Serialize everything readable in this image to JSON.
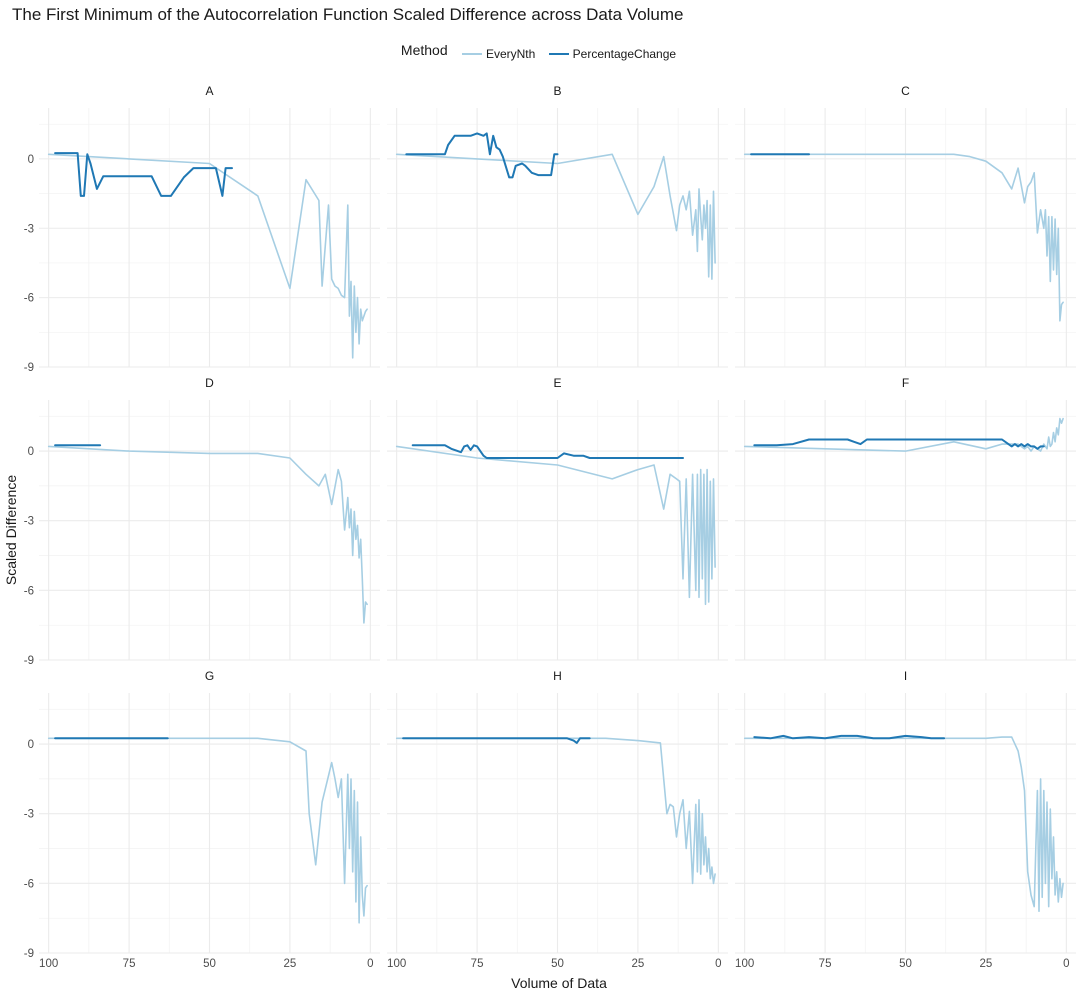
{
  "chart_data": {
    "type": "line",
    "title": "The First Minimum of the Autocorrelation Function Scaled Difference across Data Volume",
    "xlabel": "Volume of Data",
    "ylabel": "Scaled Difference",
    "xlim": [
      103,
      -3
    ],
    "ylim": [
      -9,
      2.2
    ],
    "x_reversed": true,
    "x_ticks": [
      100,
      75,
      50,
      25,
      0
    ],
    "y_ticks": [
      0,
      -3,
      -6,
      -9
    ],
    "grid": true,
    "legend": {
      "title": "Method",
      "position": "top",
      "entries": [
        {
          "name": "EveryNth",
          "color": "#a6cee3"
        },
        {
          "name": "PercentageChange",
          "color": "#1f78b4"
        }
      ]
    },
    "facets": [
      {
        "label": "A",
        "series": [
          {
            "name": "EveryNth",
            "x": [
              100,
              75,
              50,
              35,
              25,
              20,
              16,
              15,
              13,
              12,
              11,
              10,
              9,
              8,
              7,
              6.5,
              6,
              5.5,
              5,
              4.5,
              4,
              3.5,
              3,
              2.5,
              2,
              1.5,
              1
            ],
            "y": [
              0.2,
              0,
              -0.2,
              -1.6,
              -5.6,
              -0.9,
              -1.8,
              -5.5,
              -2.0,
              -5.2,
              -5.5,
              -5.6,
              -5.9,
              -6.0,
              -2.0,
              -6.8,
              -5.3,
              -8.6,
              -5.5,
              -7.5,
              -6.0,
              -8.0,
              -6.5,
              -7.0,
              -6.8,
              -6.6,
              -6.5
            ]
          },
          {
            "name": "PercentageChange",
            "x": [
              98,
              91,
              90,
              89,
              88,
              87,
              85,
              83,
              80,
              75,
              68,
              65,
              62,
              58,
              55,
              50,
              48,
              46,
              45,
              43
            ],
            "y": [
              0.25,
              0.25,
              -1.6,
              -1.6,
              0.2,
              -0.2,
              -1.3,
              -0.75,
              -0.75,
              -0.75,
              -0.75,
              -1.6,
              -1.6,
              -0.8,
              -0.4,
              -0.4,
              -0.4,
              -1.6,
              -0.4,
              -0.4
            ]
          }
        ]
      },
      {
        "label": "B",
        "series": [
          {
            "name": "EveryNth",
            "x": [
              100,
              75,
              50,
              33,
              25,
              20,
              17,
              15,
              13,
              12,
              11,
              10,
              9,
              8,
              7,
              6.5,
              6,
              5.5,
              5,
              4.5,
              4,
              3.5,
              3,
              2.5,
              2,
              1.5,
              1
            ],
            "y": [
              0.2,
              0,
              -0.2,
              0.2,
              -2.4,
              -1.2,
              0.1,
              -1.6,
              -3.1,
              -2.0,
              -1.6,
              -2.2,
              -1.4,
              -3.3,
              -2.2,
              -4.0,
              -1.3,
              -2.5,
              -3.5,
              -2.0,
              -3.0,
              -1.8,
              -5.1,
              -2.0,
              -5.2,
              -1.4,
              -4.5
            ]
          },
          {
            "name": "PercentageChange",
            "x": [
              97,
              85,
              84,
              82,
              80,
              77,
              75,
              73,
              72,
              71,
              70,
              69,
              68,
              67,
              65,
              64,
              63,
              61,
              60,
              58,
              56,
              54,
              52,
              51,
              50
            ],
            "y": [
              0.2,
              0.2,
              0.6,
              1.0,
              1.0,
              1.0,
              1.1,
              1.0,
              1.1,
              0.2,
              1.0,
              0.5,
              0.4,
              0.1,
              -0.8,
              -0.8,
              -0.3,
              -0.2,
              -0.3,
              -0.6,
              -0.7,
              -0.7,
              -0.7,
              0.2,
              0.2
            ]
          }
        ]
      },
      {
        "label": "C",
        "series": [
          {
            "name": "EveryNth",
            "x": [
              100,
              75,
              50,
              35,
              30,
              25,
              20,
              17,
              15,
              13,
              12,
              11,
              10,
              9,
              8,
              7,
              6.5,
              6,
              5.5,
              5,
              4.5,
              4,
              3.5,
              3,
              2.5,
              2,
              1.5,
              1
            ],
            "y": [
              0.2,
              0.2,
              0.2,
              0.2,
              0.1,
              -0.1,
              -0.6,
              -1.3,
              -0.4,
              -1.9,
              -1.2,
              -1.0,
              -0.6,
              -3.2,
              -2.2,
              -3.0,
              -2.2,
              -4.2,
              -2.5,
              -5.3,
              -2.5,
              -4.8,
              -2.6,
              -5.0,
              -3.0,
              -7.0,
              -6.3,
              -6.2
            ]
          },
          {
            "name": "PercentageChange",
            "x": [
              98,
              80
            ],
            "y": [
              0.2,
              0.2
            ]
          }
        ]
      },
      {
        "label": "D",
        "series": [
          {
            "name": "EveryNth",
            "x": [
              100,
              75,
              50,
              35,
              25,
              20,
              16,
              14,
              12,
              10,
              9,
              8,
              7,
              6.5,
              6,
              5.5,
              5,
              4.5,
              4,
              3.5,
              3,
              2.5,
              2,
              1.5,
              1
            ],
            "y": [
              0.2,
              0,
              -0.1,
              -0.1,
              -0.3,
              -1.0,
              -1.5,
              -1.0,
              -2.3,
              -0.8,
              -1.3,
              -3.4,
              -2.0,
              -3.3,
              -2.5,
              -4.5,
              -2.6,
              -3.8,
              -3.2,
              -4.6,
              -3.8,
              -5.5,
              -7.4,
              -6.5,
              -6.6
            ]
          },
          {
            "name": "PercentageChange",
            "x": [
              98,
              84
            ],
            "y": [
              0.25,
              0.25
            ]
          }
        ]
      },
      {
        "label": "E",
        "series": [
          {
            "name": "EveryNth",
            "x": [
              100,
              75,
              50,
              33,
              25,
              20,
              17,
              15,
              13,
              12,
              11,
              10,
              9,
              8,
              7,
              6.5,
              6,
              5.5,
              5,
              4.5,
              4,
              3.5,
              3,
              2.5,
              2,
              1.5,
              1
            ],
            "y": [
              0.2,
              -0.3,
              -0.6,
              -1.2,
              -0.8,
              -0.6,
              -2.5,
              -1.0,
              -1.2,
              -1.3,
              -5.5,
              -1.2,
              -6.3,
              -1.0,
              -6.0,
              -1.0,
              -6.3,
              -0.8,
              -5.5,
              -1.0,
              -6.6,
              -0.8,
              -6.5,
              -1.3,
              -5.5,
              -1.2,
              -5.0
            ]
          },
          {
            "name": "PercentageChange",
            "x": [
              95,
              85,
              83,
              80,
              79,
              78,
              77,
              76,
              75,
              73,
              72,
              70,
              68,
              50,
              48,
              45,
              42,
              40,
              35,
              25,
              11
            ],
            "y": [
              0.25,
              0.25,
              0.1,
              -0.05,
              0.2,
              0.25,
              0.05,
              0.25,
              0.2,
              -0.2,
              -0.3,
              -0.3,
              -0.3,
              -0.3,
              -0.1,
              -0.2,
              -0.2,
              -0.3,
              -0.3,
              -0.3,
              -0.3
            ]
          }
        ]
      },
      {
        "label": "F",
        "series": [
          {
            "name": "EveryNth",
            "x": [
              100,
              75,
              50,
              35,
              25,
              20,
              15,
              13,
              12,
              11,
              10,
              9,
              8,
              7,
              6.5,
              6,
              5.5,
              5,
              4.5,
              4,
              3.5,
              3,
              2.5,
              2,
              1.5,
              1
            ],
            "y": [
              0.2,
              0.1,
              0,
              0.4,
              0.1,
              0.3,
              0.3,
              0.1,
              0.2,
              0,
              0.2,
              0.1,
              0,
              0.3,
              0.2,
              0.1,
              0.6,
              0.2,
              0.3,
              0.8,
              0.4,
              1.0,
              0.7,
              1.4,
              1.2,
              1.4
            ]
          },
          {
            "name": "PercentageChange",
            "x": [
              97,
              90,
              85,
              80,
              70,
              68,
              66,
              64,
              62,
              60,
              50,
              40,
              30,
              20,
              18,
              17,
              16,
              15,
              14,
              13,
              12,
              11,
              10,
              9,
              8,
              7
            ],
            "y": [
              0.25,
              0.25,
              0.3,
              0.5,
              0.5,
              0.5,
              0.4,
              0.3,
              0.5,
              0.5,
              0.5,
              0.5,
              0.5,
              0.5,
              0.3,
              0.2,
              0.3,
              0.2,
              0.3,
              0.2,
              0.3,
              0.2,
              0.2,
              0.1,
              0.2,
              0.2
            ]
          }
        ]
      },
      {
        "label": "G",
        "series": [
          {
            "name": "EveryNth",
            "x": [
              100,
              75,
              50,
              35,
              25,
              20,
              19,
              17,
              15,
              12,
              11,
              10,
              9,
              8,
              7,
              6.5,
              6,
              5.5,
              5,
              4.5,
              4,
              3.5,
              3,
              2.5,
              2,
              1.5,
              1
            ],
            "y": [
              0.25,
              0.25,
              0.25,
              0.25,
              0.1,
              -0.3,
              -3.0,
              -5.2,
              -2.5,
              -0.8,
              -1.5,
              -2.3,
              -1.5,
              -6.0,
              -1.3,
              -4.5,
              -1.5,
              -5.5,
              -2.0,
              -6.8,
              -2.5,
              -7.7,
              -4.0,
              -6.5,
              -7.4,
              -6.2,
              -6.1
            ]
          },
          {
            "name": "PercentageChange",
            "x": [
              98,
              63
            ],
            "y": [
              0.25,
              0.25
            ]
          }
        ]
      },
      {
        "label": "H",
        "series": [
          {
            "name": "EveryNth",
            "x": [
              100,
              75,
              50,
              35,
              25,
              18,
              17,
              16,
              15,
              14,
              13,
              12,
              11,
              10,
              9,
              8,
              7,
              6.5,
              6,
              5.5,
              5,
              4.5,
              4,
              3.5,
              3,
              2.5,
              2,
              1.5,
              1
            ],
            "y": [
              0.25,
              0.25,
              0.25,
              0.25,
              0.15,
              0.05,
              -1.5,
              -3.0,
              -2.6,
              -2.7,
              -4.0,
              -3.0,
              -2.4,
              -4.5,
              -2.9,
              -6.0,
              -2.6,
              -5.5,
              -2.4,
              -5.6,
              -3.0,
              -5.2,
              -4.0,
              -5.5,
              -4.5,
              -5.8,
              -5.3,
              -6.0,
              -5.6
            ]
          },
          {
            "name": "PercentageChange",
            "x": [
              98,
              50,
              47,
              45,
              44,
              43,
              42,
              40
            ],
            "y": [
              0.25,
              0.25,
              0.25,
              0.15,
              0.05,
              0.25,
              0.25,
              0.25
            ]
          }
        ]
      },
      {
        "label": "I",
        "series": [
          {
            "name": "EveryNth",
            "x": [
              100,
              75,
              50,
              35,
              25,
              20,
              17,
              15,
              14,
              13,
              12,
              11,
              10,
              9,
              8.5,
              8,
              7.5,
              7,
              6.5,
              6,
              5.5,
              5,
              4.5,
              4,
              3.5,
              3,
              2.5,
              2,
              1.5,
              1
            ],
            "y": [
              0.25,
              0.25,
              0.25,
              0.25,
              0.25,
              0.3,
              0.3,
              -0.3,
              -1.0,
              -2.0,
              -5.5,
              -6.5,
              -7.0,
              -2.0,
              -7.2,
              -1.5,
              -6.6,
              -2.0,
              -6.0,
              -2.5,
              -7.0,
              -2.8,
              -5.8,
              -4.0,
              -6.5,
              -5.5,
              -6.8,
              -5.8,
              -6.6,
              -6.0
            ]
          },
          {
            "name": "PercentageChange",
            "x": [
              97,
              92,
              88,
              85,
              80,
              75,
              70,
              65,
              60,
              55,
              50,
              45,
              42,
              38
            ],
            "y": [
              0.3,
              0.25,
              0.35,
              0.25,
              0.3,
              0.25,
              0.35,
              0.35,
              0.25,
              0.25,
              0.35,
              0.3,
              0.25,
              0.25
            ]
          }
        ]
      }
    ]
  }
}
